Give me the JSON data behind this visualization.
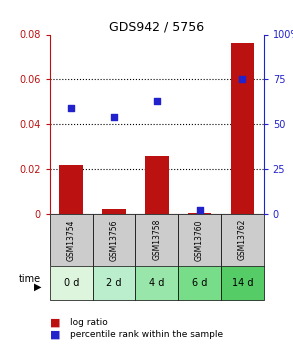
{
  "title": "GDS942 / 5756",
  "samples": [
    "GSM13754",
    "GSM13756",
    "GSM13758",
    "GSM13760",
    "GSM13762"
  ],
  "time_labels": [
    "0 d",
    "2 d",
    "4 d",
    "6 d",
    "14 d"
  ],
  "log_ratio": [
    0.022,
    0.002,
    0.026,
    0.0005,
    0.076
  ],
  "percentile": [
    59,
    54,
    63,
    2,
    75
  ],
  "bar_color": "#bb1111",
  "dot_color": "#2222cc",
  "ylim_left": [
    0,
    0.08
  ],
  "ylim_right": [
    0,
    100
  ],
  "yticks_left": [
    0,
    0.02,
    0.04,
    0.06,
    0.08
  ],
  "yticks_right": [
    0,
    25,
    50,
    75,
    100
  ],
  "ytick_labels_left": [
    "0",
    "0.02",
    "0.04",
    "0.06",
    "0.08"
  ],
  "ytick_labels_right": [
    "0",
    "25",
    "50",
    "75",
    "100%"
  ],
  "grid_values": [
    0.02,
    0.04,
    0.06
  ],
  "sample_bg_color": "#cccccc",
  "time_bg_colors": [
    "#ddf5dd",
    "#bbeecc",
    "#99e6aa",
    "#77dd88",
    "#55cc66"
  ],
  "bar_width": 0.55,
  "figsize": [
    2.93,
    3.45
  ],
  "dpi": 100
}
